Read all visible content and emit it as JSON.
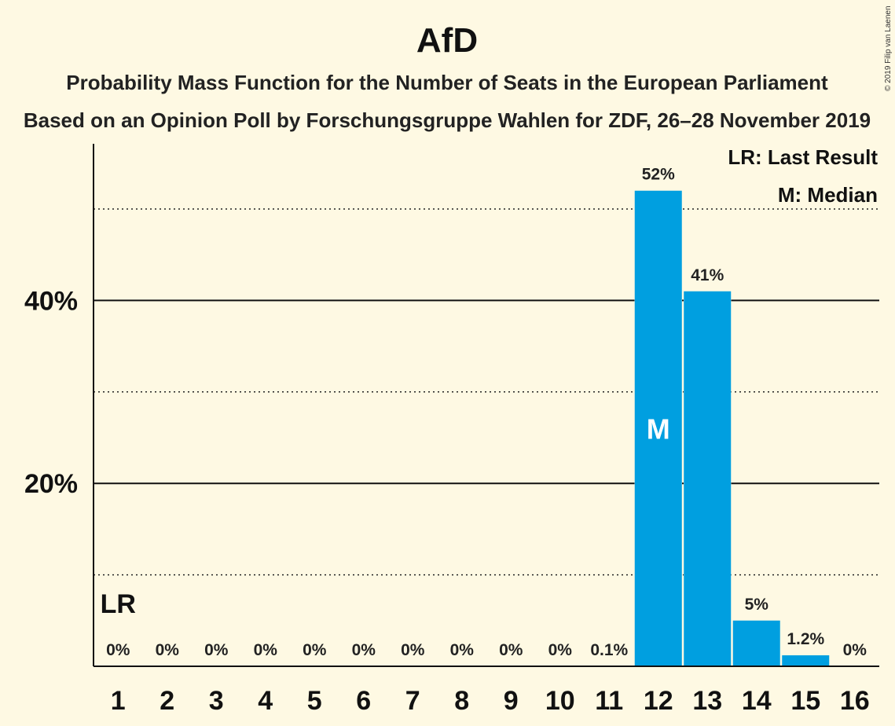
{
  "chart_data": {
    "type": "bar",
    "title": "AfD",
    "subtitle_1": "Probability Mass Function for the Number of Seats in the European Parliament",
    "subtitle_2": "Based on an Opinion Poll by Forschungsgruppe Wahlen for ZDF, 26–28 November 2019",
    "categories": [
      "1",
      "2",
      "3",
      "4",
      "5",
      "6",
      "7",
      "8",
      "9",
      "10",
      "11",
      "12",
      "13",
      "14",
      "15",
      "16"
    ],
    "values": [
      0,
      0,
      0,
      0,
      0,
      0,
      0,
      0,
      0,
      0,
      0.1,
      52,
      41,
      5,
      1.2,
      0
    ],
    "value_labels": [
      "0%",
      "0%",
      "0%",
      "0%",
      "0%",
      "0%",
      "0%",
      "0%",
      "0%",
      "0%",
      "0.1%",
      "52%",
      "41%",
      "5%",
      "1.2%",
      "0%"
    ],
    "ylim": [
      0,
      57
    ],
    "yticks_major": [
      20,
      40
    ],
    "ytick_labels": [
      "20%",
      "40%"
    ],
    "yticks_minor": [
      10,
      30,
      50
    ],
    "bar_color": "#009FE0",
    "last_result_category": "1",
    "last_result_marker": "LR",
    "median_category": "12",
    "median_marker": "M",
    "legend": [
      "LR: Last Result",
      "M: Median"
    ],
    "legend_position": "top-right"
  },
  "copyright": "© 2019 Filip van Laenen"
}
